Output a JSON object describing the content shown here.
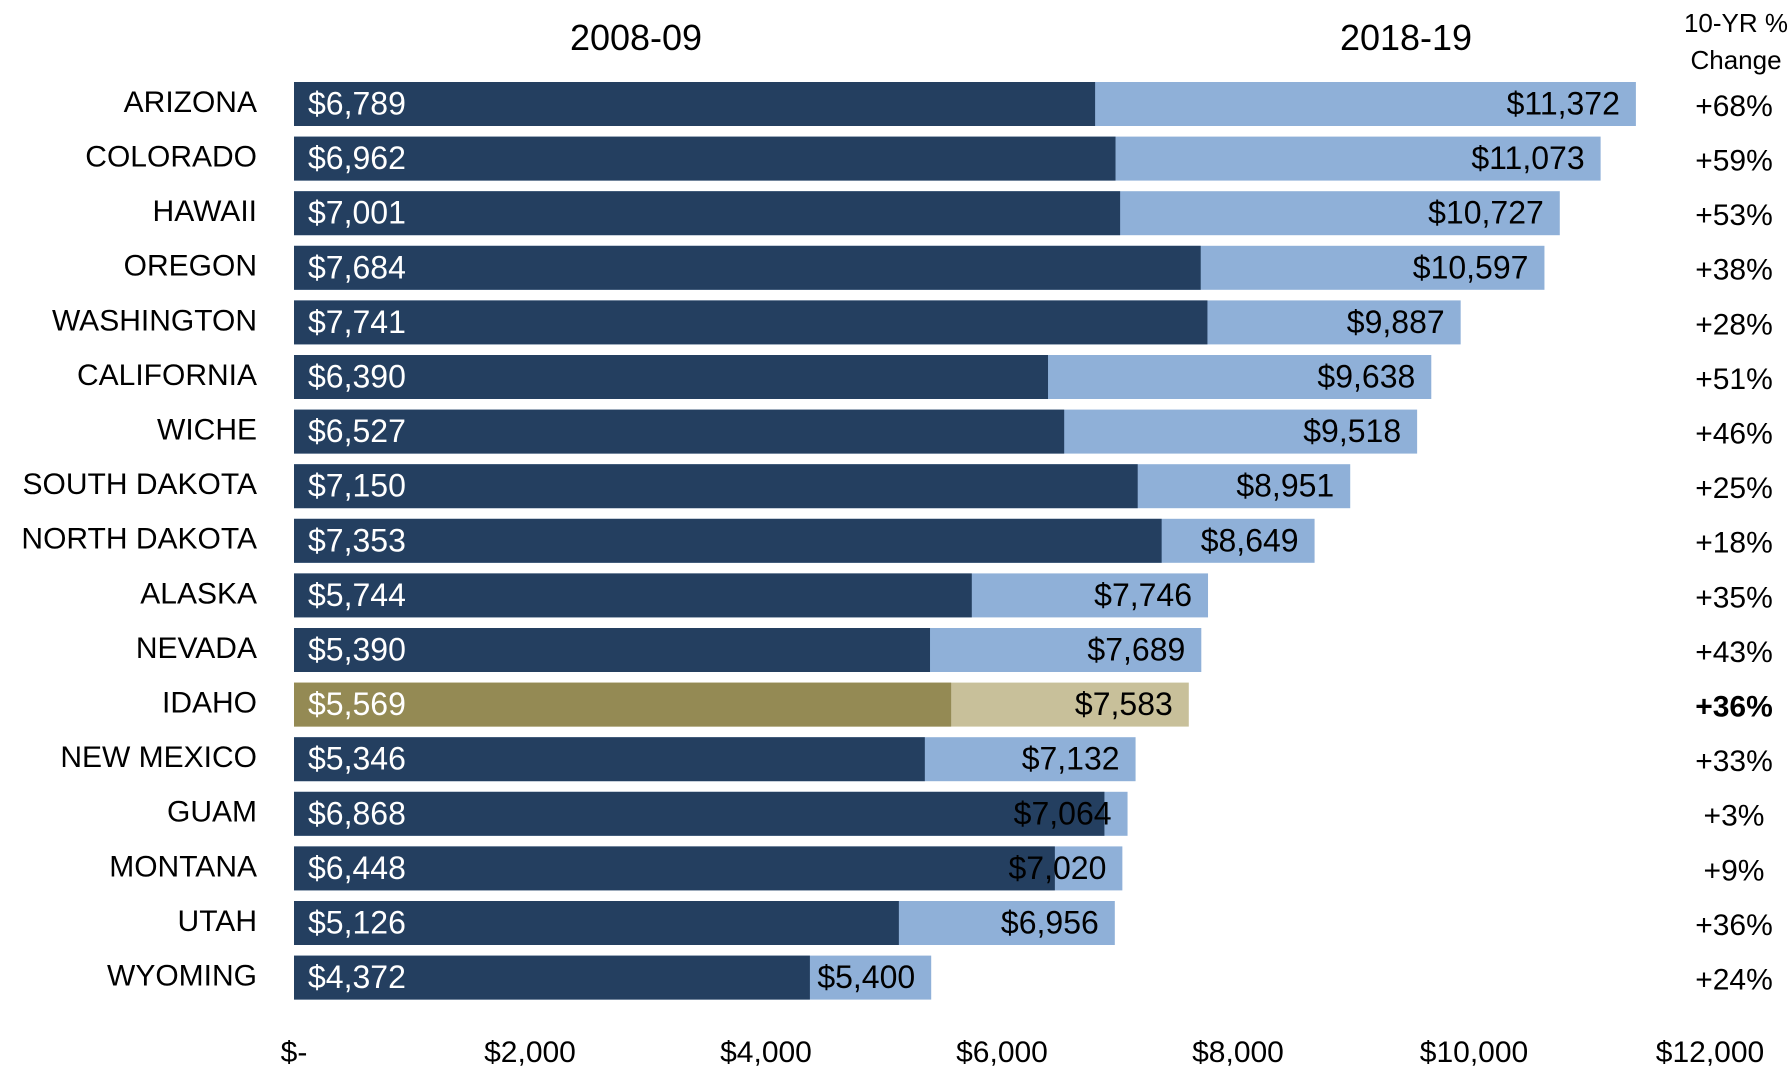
{
  "chart_data": {
    "type": "bar",
    "orientation": "horizontal",
    "overlay": true,
    "categories": [
      "ARIZONA",
      "COLORADO",
      "HAWAII",
      "OREGON",
      "WASHINGTON",
      "CALIFORNIA",
      "WICHE",
      "SOUTH DAKOTA",
      "NORTH DAKOTA",
      "ALASKA",
      "NEVADA",
      "IDAHO",
      "NEW MEXICO",
      "GUAM",
      "MONTANA",
      "UTAH",
      "WYOMING"
    ],
    "series": [
      {
        "name": "2018-19",
        "values": [
          11372,
          11073,
          10727,
          10597,
          9887,
          9638,
          9518,
          8951,
          8649,
          7746,
          7689,
          7583,
          7132,
          7064,
          7020,
          6956,
          5400
        ],
        "labels": [
          "$11,372",
          "$11,073",
          "$10,727",
          "$10,597",
          "$9,887",
          "$9,638",
          "$9,518",
          "$8,951",
          "$8,649",
          "$7,746",
          "$7,689",
          "$7,583",
          "$7,132",
          "$7,064",
          "$7,020",
          "$6,956",
          "$5,400"
        ],
        "color": "#8fb0d8",
        "highlight_color": "#c8c09a"
      },
      {
        "name": "2008-09",
        "values": [
          6789,
          6962,
          7001,
          7684,
          7741,
          6390,
          6527,
          7150,
          7353,
          5744,
          5390,
          5569,
          5346,
          6868,
          6448,
          5126,
          4372
        ],
        "labels": [
          "$6,789",
          "$6,962",
          "$7,001",
          "$7,684",
          "$7,741",
          "$6,390",
          "$6,527",
          "$7,150",
          "$7,353",
          "$5,744",
          "$5,390",
          "$5,569",
          "$5,346",
          "$6,868",
          "$6,448",
          "$5,126",
          "$4,372"
        ],
        "color": "#243f60",
        "highlight_color": "#948a54"
      }
    ],
    "highlight_category": "IDAHO",
    "change_header": [
      "10-YR %",
      "Change"
    ],
    "change_labels": [
      "+68%",
      "+59%",
      "+53%",
      "+38%",
      "+28%",
      "+51%",
      "+46%",
      "+25%",
      "+18%",
      "+35%",
      "+43%",
      "+36%",
      "+33%",
      "+3%",
      "+9%",
      "+36%",
      "+24%"
    ],
    "xlim": [
      0,
      12000
    ],
    "xticks": [
      0,
      2000,
      4000,
      6000,
      8000,
      10000,
      12000
    ],
    "xtick_labels": [
      "$-",
      "$2,000",
      "$4,000",
      "$6,000",
      "$8,000",
      "$10,000",
      "$12,000"
    ],
    "grid": false,
    "legend": "none"
  }
}
